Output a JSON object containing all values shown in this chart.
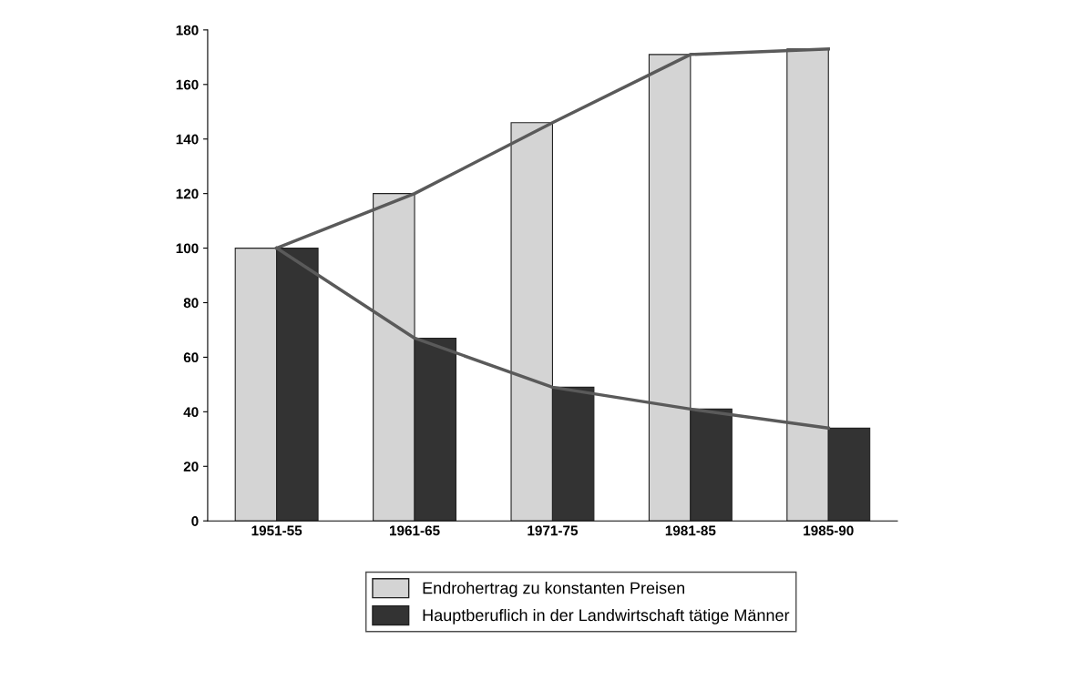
{
  "chart_data": {
    "type": "bar",
    "categories": [
      "1951-55",
      "1961-65",
      "1971-75",
      "1981-85",
      "1985-90"
    ],
    "ylim": [
      0,
      180
    ],
    "yticks": [
      0,
      20,
      40,
      60,
      80,
      100,
      120,
      140,
      160,
      180
    ],
    "series": [
      {
        "name": "Endrohertrag zu konstanten Preisen",
        "color": "#d4d4d4",
        "values": [
          100,
          120,
          146,
          171,
          173
        ]
      },
      {
        "name": "Hauptberuflich in der Landwirtschaft tätige Männer",
        "color": "#333333",
        "values": [
          100,
          67,
          49,
          41,
          34
        ]
      },
      {
        "type": "line",
        "color": "#5a5a5a",
        "values": [
          100,
          120,
          146,
          171,
          173
        ]
      },
      {
        "type": "line",
        "color": "#5a5a5a",
        "values": [
          100,
          67,
          49,
          41,
          34
        ]
      }
    ],
    "grid": false,
    "legend": "bottom",
    "marker": "none",
    "line_style": "solid"
  }
}
